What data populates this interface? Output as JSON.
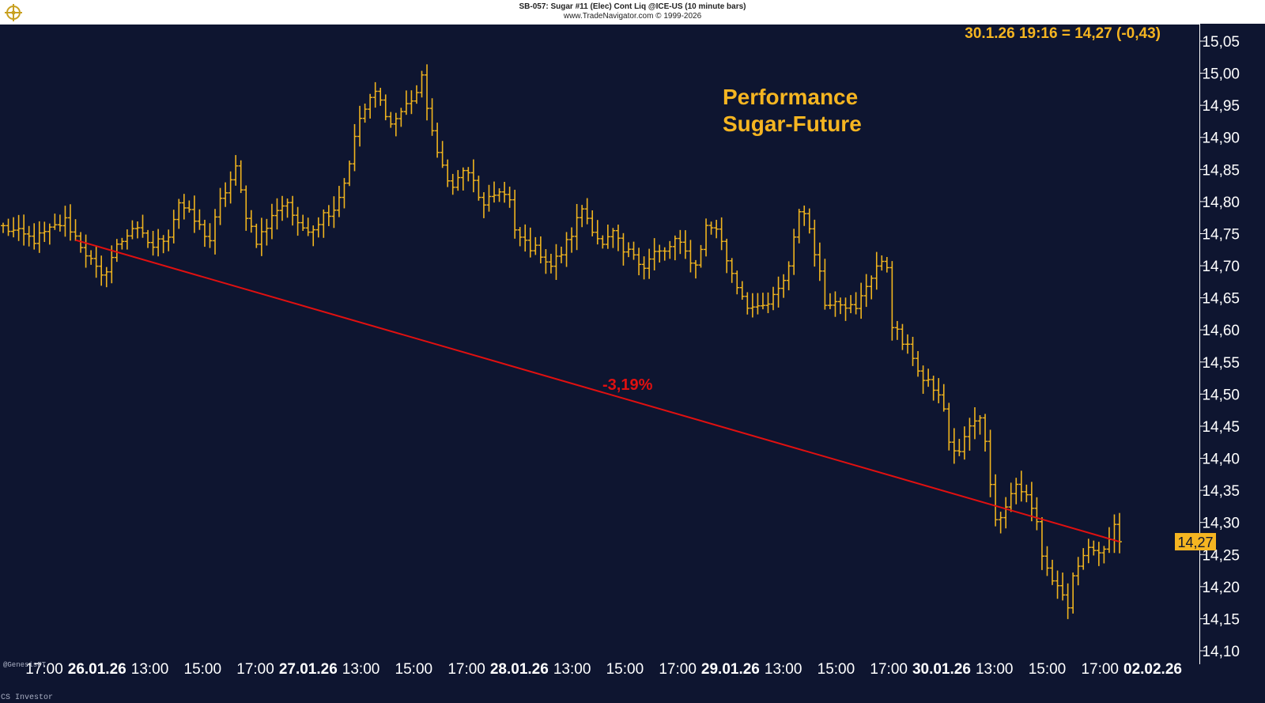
{
  "header": {
    "title": "SB-057: Sugar #11 (Elec) Cont Liq @ICE-US (10 minute bars)",
    "copyright": "www.TradeNavigator.com © 1999-2026"
  },
  "readout": "30.1.26 19:16 = 14,27 (-0,43)",
  "annotation": {
    "line1": "Performance",
    "line2": "Sugar-Future"
  },
  "trend_label": "-3,19%",
  "last_price_tag": "14,27",
  "stamp": "@GenesisFT",
  "credit": "CS Investor",
  "colors": {
    "background": "#0e1530",
    "bars": "#f0b41e",
    "trend": "#e01010",
    "text": "#ffffff",
    "accent": "#f5b521"
  },
  "chart_data": {
    "type": "ohlc",
    "title": "SB-057: Sugar #11 (Elec) Cont Liq @ICE-US (10 minute bars)",
    "ylim": [
      14.1,
      15.05
    ],
    "y_ticks": [
      "15,05",
      "15,00",
      "14,95",
      "14,90",
      "14,85",
      "14,80",
      "14,75",
      "14,70",
      "14,65",
      "14,60",
      "14,55",
      "14,50",
      "14,45",
      "14,40",
      "14,35",
      "14,30",
      "14,25",
      "14,20",
      "14,15",
      "14,10"
    ],
    "x_ticks": [
      {
        "label": "17:00",
        "bold": false
      },
      {
        "label": "26.01.26",
        "bold": true
      },
      {
        "label": "13:00",
        "bold": false
      },
      {
        "label": "15:00",
        "bold": false
      },
      {
        "label": "17:00",
        "bold": false
      },
      {
        "label": "27.01.26",
        "bold": true
      },
      {
        "label": "13:00",
        "bold": false
      },
      {
        "label": "15:00",
        "bold": false
      },
      {
        "label": "17:00",
        "bold": false
      },
      {
        "label": "28.01.26",
        "bold": true
      },
      {
        "label": "13:00",
        "bold": false
      },
      {
        "label": "15:00",
        "bold": false
      },
      {
        "label": "17:00",
        "bold": false
      },
      {
        "label": "29.01.26",
        "bold": true
      },
      {
        "label": "13:00",
        "bold": false
      },
      {
        "label": "15:00",
        "bold": false
      },
      {
        "label": "17:00",
        "bold": false
      },
      {
        "label": "30.01.26",
        "bold": true
      },
      {
        "label": "13:00",
        "bold": false
      },
      {
        "label": "15:00",
        "bold": false
      },
      {
        "label": "17:00",
        "bold": false
      },
      {
        "label": "02.02.26",
        "bold": true
      }
    ],
    "price_path": [
      [
        0,
        14.76
      ],
      [
        6,
        14.74
      ],
      [
        12,
        14.77
      ],
      [
        16,
        14.72
      ],
      [
        19,
        14.68
      ],
      [
        22,
        14.73
      ],
      [
        25,
        14.76
      ],
      [
        29,
        14.73
      ],
      [
        32,
        14.75
      ],
      [
        34,
        14.8
      ],
      [
        37,
        14.77
      ],
      [
        40,
        14.74
      ],
      [
        42,
        14.8
      ],
      [
        45,
        14.85
      ],
      [
        47,
        14.78
      ],
      [
        49,
        14.74
      ],
      [
        51,
        14.76
      ],
      [
        53,
        14.79
      ],
      [
        55,
        14.8
      ],
      [
        57,
        14.76
      ],
      [
        60,
        14.76
      ],
      [
        62,
        14.78
      ],
      [
        64,
        14.79
      ],
      [
        66,
        14.83
      ],
      [
        69,
        14.93
      ],
      [
        72,
        14.97
      ],
      [
        74,
        14.94
      ],
      [
        75,
        14.92
      ],
      [
        77,
        14.94
      ],
      [
        80,
        14.97
      ],
      [
        81,
        14.99
      ],
      [
        82,
        14.95
      ],
      [
        84,
        14.87
      ],
      [
        86,
        14.84
      ],
      [
        87,
        14.82
      ],
      [
        89,
        14.85
      ],
      [
        91,
        14.83
      ],
      [
        93,
        14.79
      ],
      [
        96,
        14.82
      ],
      [
        98,
        14.8
      ],
      [
        99,
        14.75
      ],
      [
        102,
        14.73
      ],
      [
        104,
        14.72
      ],
      [
        106,
        14.7
      ],
      [
        108,
        14.72
      ],
      [
        110,
        14.75
      ],
      [
        112,
        14.79
      ],
      [
        114,
        14.76
      ],
      [
        116,
        14.73
      ],
      [
        118,
        14.75
      ],
      [
        120,
        14.72
      ],
      [
        122,
        14.72
      ],
      [
        124,
        14.7
      ],
      [
        126,
        14.72
      ],
      [
        128,
        14.72
      ],
      [
        130,
        14.74
      ],
      [
        132,
        14.72
      ],
      [
        134,
        14.7
      ],
      [
        136,
        14.76
      ],
      [
        138,
        14.76
      ],
      [
        140,
        14.71
      ],
      [
        142,
        14.67
      ],
      [
        144,
        14.64
      ],
      [
        146,
        14.63
      ],
      [
        148,
        14.64
      ],
      [
        150,
        14.66
      ],
      [
        152,
        14.7
      ],
      [
        154,
        14.79
      ],
      [
        156,
        14.76
      ],
      [
        158,
        14.69
      ],
      [
        159,
        14.64
      ],
      [
        161,
        14.65
      ],
      [
        163,
        14.64
      ],
      [
        165,
        14.63
      ],
      [
        167,
        14.67
      ],
      [
        169,
        14.7
      ],
      [
        171,
        14.7
      ],
      [
        172,
        14.61
      ],
      [
        174,
        14.58
      ],
      [
        176,
        14.56
      ],
      [
        178,
        14.52
      ],
      [
        180,
        14.51
      ],
      [
        182,
        14.48
      ],
      [
        183,
        14.42
      ],
      [
        185,
        14.41
      ],
      [
        187,
        14.45
      ],
      [
        189,
        14.46
      ],
      [
        190,
        14.43
      ],
      [
        192,
        14.3
      ],
      [
        194,
        14.33
      ],
      [
        196,
        14.36
      ],
      [
        198,
        14.34
      ],
      [
        200,
        14.3
      ],
      [
        201,
        14.25
      ],
      [
        203,
        14.21
      ],
      [
        205,
        14.19
      ],
      [
        206,
        14.16
      ],
      [
        207,
        14.21
      ],
      [
        209,
        14.25
      ],
      [
        211,
        14.26
      ],
      [
        213,
        14.26
      ],
      [
        215,
        14.29
      ],
      [
        216,
        14.27
      ]
    ],
    "trend_line": {
      "from": {
        "bar": 14,
        "value": 14.74
      },
      "to": {
        "bar": 216,
        "value": 14.27
      },
      "change": "-3,19%"
    }
  }
}
